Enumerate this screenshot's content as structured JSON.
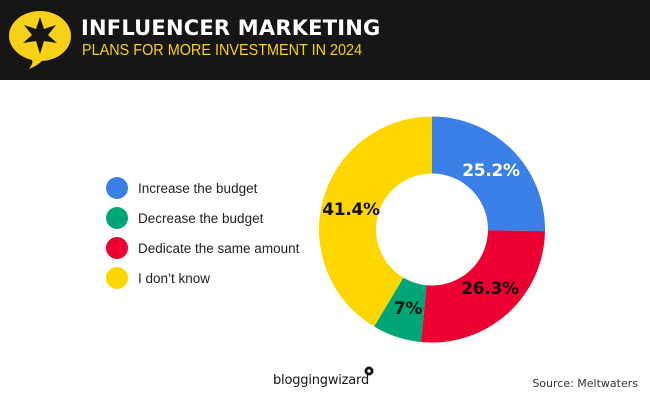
{
  "header": {
    "title": "INFLUENCER MARKETING",
    "subtitle": "PLANS FOR MORE INVESTMENT IN 2024",
    "icon": "star-speech-bubble-icon",
    "background_color": "#161616",
    "accent_color": "#f7d117"
  },
  "legend": {
    "items": [
      {
        "label": "Increase the budget",
        "color": "#3a80e6"
      },
      {
        "label": "Decrease the budget",
        "color": "#00a676"
      },
      {
        "label": "Dedicate the same amount",
        "color": "#ec0032"
      },
      {
        "label": "I don’t know",
        "color": "#fdd600"
      }
    ]
  },
  "slice_labels": {
    "increase": "25.2%",
    "same": "26.3%",
    "decrease": "7%",
    "dont_know": "41.4%"
  },
  "chart_data": {
    "type": "pie",
    "subtype": "donut",
    "title": "INFLUENCER MARKETING",
    "subtitle": "PLANS FOR MORE INVESTMENT IN 2024",
    "categories": [
      "Increase the budget",
      "Dedicate the same amount",
      "Decrease the budget",
      "I don’t know"
    ],
    "values": [
      25.2,
      26.3,
      7,
      41.4
    ],
    "colors": [
      "#3a80e6",
      "#ec0032",
      "#00a676",
      "#fdd600"
    ],
    "data_labels": [
      "25.2%",
      "26.3%",
      "7%",
      "41.4%"
    ],
    "unit": "%",
    "start_angle": "12 o'clock, clockwise",
    "legend_position": "left",
    "legend_order": [
      "Increase the budget",
      "Decrease the budget",
      "Dedicate the same amount",
      "I don’t know"
    ]
  },
  "footer": {
    "brand": "bloggingwizard",
    "source": "Source: Meltwaters"
  }
}
